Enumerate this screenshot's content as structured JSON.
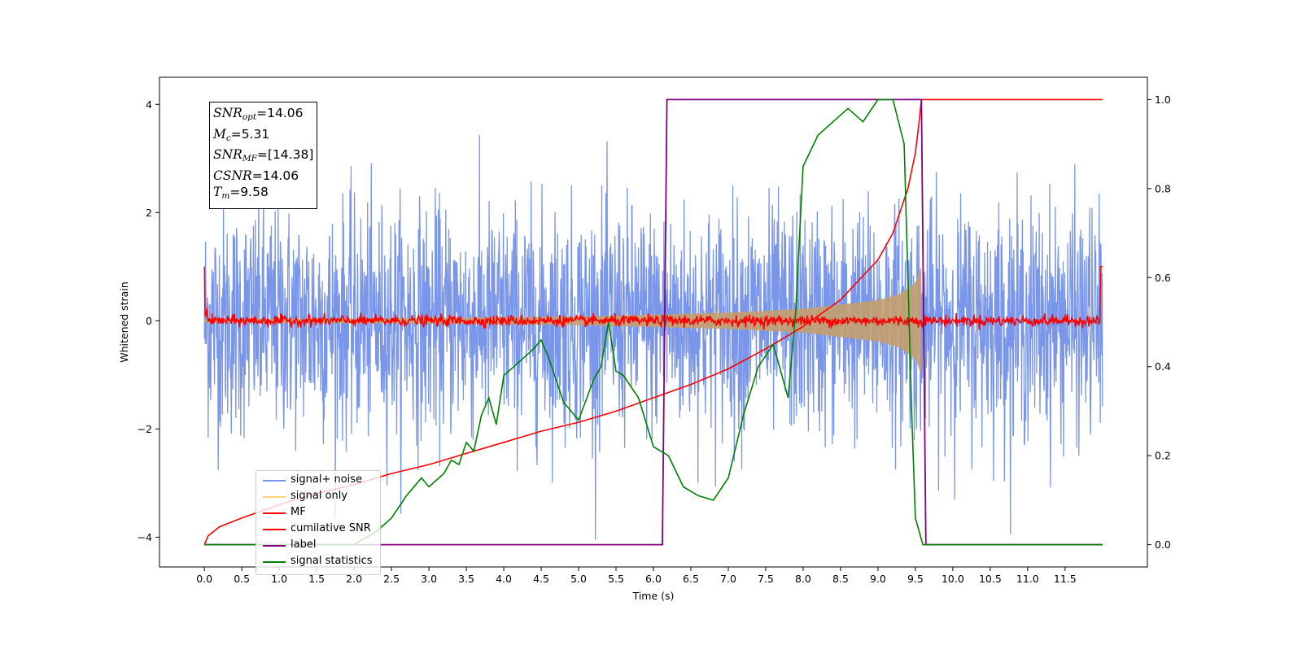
{
  "chart_data": {
    "type": "line",
    "xlabel": "Time (s)",
    "ylabel": "Whitened strain",
    "xlim": [
      -0.6,
      12.6
    ],
    "ylim": [
      -4.55,
      4.5
    ],
    "y2lim": [
      -0.05,
      1.05
    ],
    "x_ticks": [
      "0.0",
      "0.5",
      "1.0",
      "1.5",
      "2.0",
      "2.5",
      "3.0",
      "3.5",
      "4.0",
      "4.5",
      "5.0",
      "5.5",
      "6.0",
      "6.5",
      "7.0",
      "7.5",
      "8.0",
      "8.5",
      "9.0",
      "9.5",
      "10.0",
      "10.5",
      "11.0",
      "11.5"
    ],
    "y_ticks": [
      "4",
      "2",
      "0",
      "−2",
      "−4"
    ],
    "y2_ticks": [
      "1.0",
      "0.8",
      "0.6",
      "0.4",
      "0.2",
      "0.0"
    ],
    "legend_position": "lower-left",
    "annotation": [
      {
        "label": "SNR",
        "sub": "opt",
        "value": "=14.06"
      },
      {
        "label": "M",
        "sub": "c",
        "value": "=5.31"
      },
      {
        "label": "SNR",
        "sub": "MF",
        "value": "=[14.38]"
      },
      {
        "label": "CSNR",
        "sub": "",
        "value": "=14.06"
      },
      {
        "label": "T",
        "sub": "m",
        "value": "=9.58"
      }
    ],
    "series": [
      {
        "name": "signal+ noise",
        "color": "#4169e1",
        "axis": "left",
        "kind": "noise",
        "time_range": [
          0,
          12
        ],
        "amplitude_std": 1.0
      },
      {
        "name": "signal only",
        "color": "#ffa500",
        "axis": "left",
        "kind": "chirp",
        "time_range": [
          0,
          9.58
        ],
        "envelope": {
          "t": [
            0,
            3,
            5,
            7,
            8,
            9,
            9.3,
            9.5,
            9.58
          ],
          "amp": [
            0.03,
            0.05,
            0.08,
            0.15,
            0.22,
            0.38,
            0.5,
            0.7,
            1.0
          ]
        }
      },
      {
        "name": "MF",
        "color": "#ff0000",
        "axis": "left",
        "kind": "noise",
        "time_range": [
          0,
          12
        ],
        "amplitude_std": 0.05,
        "edge_value": 1.0
      },
      {
        "name": "cumilative SNR",
        "color": "#ff0000",
        "axis": "right",
        "t": [
          0,
          0.05,
          0.2,
          0.5,
          1,
          1.5,
          2,
          2.5,
          3,
          3.5,
          4,
          4.5,
          5,
          5.5,
          6,
          6.5,
          7,
          7.5,
          8,
          8.5,
          9,
          9.2,
          9.4,
          9.5,
          9.55,
          9.58,
          10,
          11,
          12
        ],
        "y": [
          0,
          0.02,
          0.04,
          0.06,
          0.09,
          0.115,
          0.135,
          0.16,
          0.18,
          0.205,
          0.23,
          0.255,
          0.275,
          0.3,
          0.33,
          0.36,
          0.395,
          0.44,
          0.49,
          0.55,
          0.64,
          0.7,
          0.8,
          0.88,
          0.95,
          1.0,
          1.0,
          1.0,
          1.0
        ]
      },
      {
        "name": "label",
        "color": "#800080",
        "axis": "right",
        "t": [
          0,
          6.12,
          6.18,
          9.58,
          9.64,
          12
        ],
        "y": [
          0,
          0,
          1,
          1,
          0,
          0
        ]
      },
      {
        "name": "signal statistics",
        "color": "#008000",
        "axis": "right",
        "t": [
          0,
          0.5,
          1.0,
          1.5,
          2.0,
          2.3,
          2.5,
          2.7,
          2.9,
          3.0,
          3.2,
          3.3,
          3.4,
          3.5,
          3.6,
          3.7,
          3.8,
          3.9,
          4.0,
          4.2,
          4.4,
          4.5,
          4.6,
          4.8,
          5.0,
          5.2,
          5.3,
          5.4,
          5.5,
          5.6,
          5.8,
          6.0,
          6.2,
          6.4,
          6.6,
          6.8,
          7.0,
          7.2,
          7.4,
          7.6,
          7.8,
          7.9,
          8.0,
          8.2,
          8.4,
          8.6,
          8.8,
          9.0,
          9.2,
          9.35,
          9.45,
          9.5,
          9.6,
          10.0,
          11.0,
          12.0
        ],
        "y": [
          0,
          0,
          0,
          0,
          0,
          0.03,
          0.06,
          0.11,
          0.15,
          0.13,
          0.16,
          0.19,
          0.18,
          0.23,
          0.21,
          0.29,
          0.33,
          0.27,
          0.38,
          0.41,
          0.44,
          0.46,
          0.42,
          0.32,
          0.28,
          0.37,
          0.4,
          0.5,
          0.39,
          0.38,
          0.33,
          0.22,
          0.2,
          0.13,
          0.11,
          0.1,
          0.15,
          0.29,
          0.4,
          0.45,
          0.33,
          0.52,
          0.85,
          0.92,
          0.95,
          0.98,
          0.95,
          1.0,
          1.0,
          0.9,
          0.3,
          0.06,
          0,
          0,
          0,
          0
        ]
      }
    ]
  }
}
